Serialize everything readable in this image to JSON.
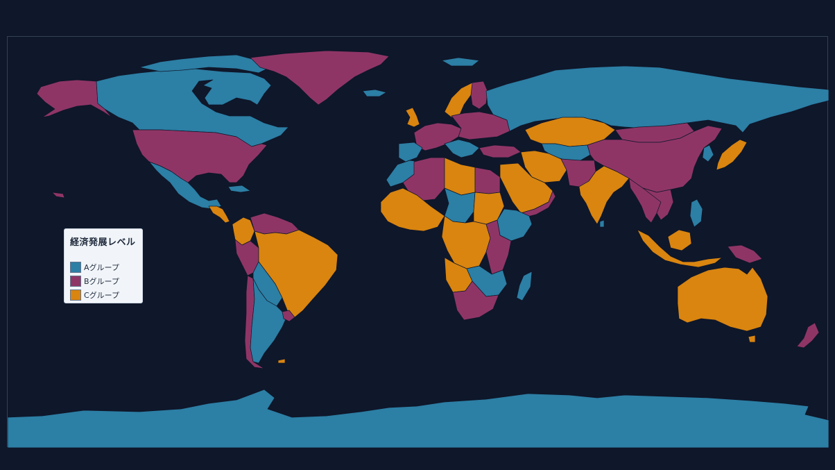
{
  "legend": {
    "title": "経済発展レベル",
    "items": [
      {
        "label": "Aグループ",
        "color": "#2c7fa5"
      },
      {
        "label": "Bグループ",
        "color": "#8f3566"
      },
      {
        "label": "Cグループ",
        "color": "#d98510"
      }
    ]
  },
  "colors": {
    "background": "#0f172a",
    "frame_border": "#334155",
    "group_a": "#2c7fa5",
    "group_b": "#8f3566",
    "group_c": "#d98510"
  },
  "regions": [
    {
      "name": "antarctica",
      "group": "A"
    },
    {
      "name": "canada",
      "group": "A"
    },
    {
      "name": "alaska",
      "group": "B"
    },
    {
      "name": "usa",
      "group": "B"
    },
    {
      "name": "mexico",
      "group": "A"
    },
    {
      "name": "greenland",
      "group": "B"
    },
    {
      "name": "brazil",
      "group": "C"
    },
    {
      "name": "argentina",
      "group": "A"
    },
    {
      "name": "chile",
      "group": "B"
    },
    {
      "name": "peru",
      "group": "B"
    },
    {
      "name": "colombia",
      "group": "C"
    },
    {
      "name": "venezuela",
      "group": "B"
    },
    {
      "name": "russia",
      "group": "A"
    },
    {
      "name": "kazakhstan",
      "group": "C"
    },
    {
      "name": "china",
      "group": "B"
    },
    {
      "name": "mongolia",
      "group": "B"
    },
    {
      "name": "india",
      "group": "C"
    },
    {
      "name": "saudi-arabia",
      "group": "C"
    },
    {
      "name": "iran",
      "group": "C"
    },
    {
      "name": "australia",
      "group": "C"
    },
    {
      "name": "indonesia",
      "group": "C"
    },
    {
      "name": "japan",
      "group": "C"
    },
    {
      "name": "scandinavia",
      "group": "C"
    },
    {
      "name": "finland",
      "group": "B"
    },
    {
      "name": "uk",
      "group": "C"
    },
    {
      "name": "algeria",
      "group": "B"
    },
    {
      "name": "libya",
      "group": "C"
    },
    {
      "name": "egypt",
      "group": "B"
    },
    {
      "name": "sudan",
      "group": "C"
    },
    {
      "name": "chad",
      "group": "A"
    },
    {
      "name": "drc",
      "group": "C"
    },
    {
      "name": "ethiopia",
      "group": "A"
    },
    {
      "name": "angola",
      "group": "C"
    },
    {
      "name": "south-africa",
      "group": "B"
    },
    {
      "name": "madagascar",
      "group": "A"
    },
    {
      "name": "new-zealand",
      "group": "B"
    },
    {
      "name": "papua-new-guinea",
      "group": "B"
    }
  ]
}
